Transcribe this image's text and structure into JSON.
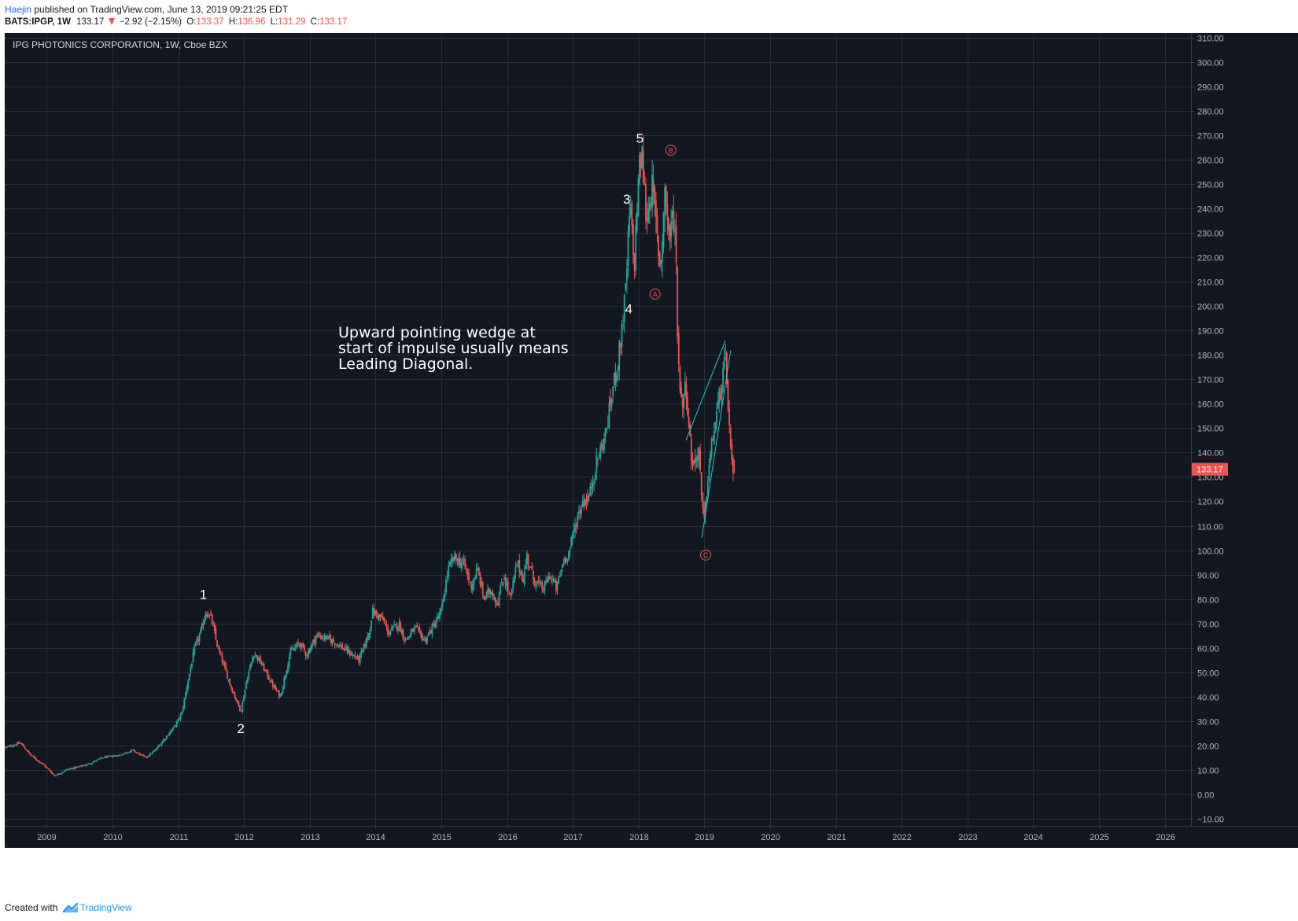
{
  "header": {
    "author": "Haejin",
    "published_text": "published on TradingView.com, June 13, 2019 09:21:25 EDT",
    "symbol_interval": "BATS:IPGP, 1W",
    "last_price": "133.17",
    "change": "−2.92 (−2.15%)",
    "open_label": "O:",
    "open": "133.37",
    "high_label": "H:",
    "high": "136.96",
    "low_label": "L:",
    "low": "131.29",
    "close_label": "C:",
    "close": "133.17"
  },
  "footer": {
    "created_with": "Created with",
    "brand": "TradingView"
  },
  "colors": {
    "background": "#131722",
    "up": "#26a69a",
    "down": "#ef5350",
    "grid": "#2a2e39",
    "axis_text": "#b2b5be",
    "wedge": "#26c6da"
  },
  "chart_data": {
    "type": "candlestick",
    "title": "IPG PHOTONICS CORPORATION, 1W, Cboe BZX",
    "interval": "1W",
    "last_price_label": "133.17",
    "y_ticks": [
      "−10.00",
      "0.00",
      "10.00",
      "20.00",
      "30.00",
      "40.00",
      "50.00",
      "60.00",
      "70.00",
      "80.00",
      "90.00",
      "100.00",
      "110.00",
      "120.00",
      "130.00",
      "140.00",
      "150.00",
      "160.00",
      "170.00",
      "180.00",
      "190.00",
      "200.00",
      "210.00",
      "220.00",
      "230.00",
      "240.00",
      "250.00",
      "260.00",
      "270.00",
      "280.00",
      "290.00",
      "300.00",
      "310.00"
    ],
    "x_ticks": [
      "2009",
      "2010",
      "2011",
      "2012",
      "2013",
      "2014",
      "2015",
      "2016",
      "2017",
      "2018",
      "2019",
      "2020",
      "2021",
      "2022",
      "2023",
      "2024",
      "2025",
      "2026"
    ],
    "ylim": [
      -13,
      312
    ],
    "xlim": [
      2008.36,
      2026.4
    ],
    "grid": true,
    "price_anchors": [
      [
        2008.36,
        19
      ],
      [
        2008.6,
        21
      ],
      [
        2008.75,
        16
      ],
      [
        2008.95,
        12
      ],
      [
        2009.12,
        7.5
      ],
      [
        2009.3,
        10
      ],
      [
        2009.6,
        12
      ],
      [
        2009.85,
        15
      ],
      [
        2010.1,
        16
      ],
      [
        2010.3,
        18
      ],
      [
        2010.5,
        15
      ],
      [
        2010.65,
        18
      ],
      [
        2010.8,
        23
      ],
      [
        2010.95,
        28
      ],
      [
        2011.05,
        33
      ],
      [
        2011.15,
        47
      ],
      [
        2011.25,
        60
      ],
      [
        2011.35,
        67
      ],
      [
        2011.42,
        75
      ],
      [
        2011.5,
        72
      ],
      [
        2011.6,
        60
      ],
      [
        2011.7,
        52
      ],
      [
        2011.8,
        44
      ],
      [
        2011.95,
        34
      ],
      [
        2012.05,
        48
      ],
      [
        2012.15,
        58
      ],
      [
        2012.25,
        54
      ],
      [
        2012.45,
        44
      ],
      [
        2012.55,
        40
      ],
      [
        2012.7,
        58
      ],
      [
        2012.85,
        62
      ],
      [
        2012.95,
        57
      ],
      [
        2013.1,
        65
      ],
      [
        2013.25,
        64
      ],
      [
        2013.4,
        62
      ],
      [
        2013.6,
        58
      ],
      [
        2013.75,
        55
      ],
      [
        2013.9,
        66
      ],
      [
        2013.95,
        75
      ],
      [
        2014.1,
        72
      ],
      [
        2014.2,
        66
      ],
      [
        2014.35,
        70
      ],
      [
        2014.45,
        63
      ],
      [
        2014.6,
        68
      ],
      [
        2014.75,
        63
      ],
      [
        2014.9,
        70
      ],
      [
        2015.0,
        75
      ],
      [
        2015.1,
        92
      ],
      [
        2015.2,
        97
      ],
      [
        2015.35,
        94
      ],
      [
        2015.45,
        85
      ],
      [
        2015.55,
        92
      ],
      [
        2015.65,
        80
      ],
      [
        2015.75,
        84
      ],
      [
        2015.85,
        78
      ],
      [
        2015.95,
        90
      ],
      [
        2016.05,
        80
      ],
      [
        2016.15,
        95
      ],
      [
        2016.25,
        88
      ],
      [
        2016.3,
        98
      ],
      [
        2016.4,
        88
      ],
      [
        2016.55,
        84
      ],
      [
        2016.65,
        90
      ],
      [
        2016.75,
        84
      ],
      [
        2016.85,
        95
      ],
      [
        2016.95,
        100
      ],
      [
        2017.05,
        112
      ],
      [
        2017.15,
        120
      ],
      [
        2017.25,
        122
      ],
      [
        2017.35,
        135
      ],
      [
        2017.5,
        148
      ],
      [
        2017.6,
        165
      ],
      [
        2017.7,
        180
      ],
      [
        2017.8,
        205
      ],
      [
        2017.87,
        242
      ],
      [
        2017.93,
        215
      ],
      [
        2018.0,
        255
      ],
      [
        2018.05,
        262
      ],
      [
        2018.12,
        235
      ],
      [
        2018.2,
        250
      ],
      [
        2018.27,
        232
      ],
      [
        2018.33,
        215
      ],
      [
        2018.4,
        248
      ],
      [
        2018.47,
        226
      ],
      [
        2018.52,
        238
      ],
      [
        2018.56,
        230
      ],
      [
        2018.6,
        180
      ],
      [
        2018.65,
        160
      ],
      [
        2018.72,
        168
      ],
      [
        2018.8,
        138
      ],
      [
        2018.85,
        135
      ],
      [
        2018.92,
        142
      ],
      [
        2018.96,
        118
      ],
      [
        2019.0,
        112
      ],
      [
        2019.05,
        130
      ],
      [
        2019.12,
        145
      ],
      [
        2019.2,
        158
      ],
      [
        2019.27,
        170
      ],
      [
        2019.32,
        178
      ],
      [
        2019.36,
        160
      ],
      [
        2019.4,
        140
      ],
      [
        2019.44,
        128
      ],
      [
        2019.46,
        133.17
      ]
    ],
    "annotations": [
      {
        "text": "1",
        "x": 2011.38,
        "y": 80
      },
      {
        "text": "2",
        "x": 2011.95,
        "y": 25
      },
      {
        "text": "3",
        "x": 2017.82,
        "y": 242
      },
      {
        "text": "4",
        "x": 2017.85,
        "y": 197
      },
      {
        "text": "5",
        "x": 2018.02,
        "y": 267
      },
      {
        "text": "A",
        "x": 2018.25,
        "y": 205,
        "circled": true
      },
      {
        "text": "B",
        "x": 2018.49,
        "y": 264,
        "circled": true
      },
      {
        "text": "C",
        "x": 2019.02,
        "y": 98,
        "circled": true
      }
    ],
    "note_lines": [
      "Upward pointing wedge at",
      "start of impulse usually means",
      "Leading Diagonal."
    ],
    "wedge_lines": [
      {
        "x1": 2018.72,
        "y1": 145,
        "x2": 2019.32,
        "y2": 186
      },
      {
        "x1": 2018.96,
        "y1": 105,
        "x2": 2019.4,
        "y2": 182
      }
    ]
  }
}
